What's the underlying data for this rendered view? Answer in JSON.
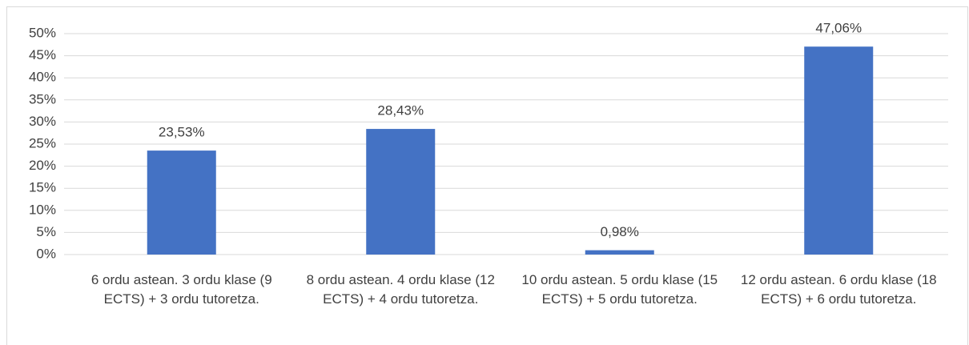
{
  "chart_data": {
    "type": "bar",
    "categories": [
      "6 ordu astean. 3 ordu klase (9 ECTS) + 3 ordu tutoretza.",
      "8 ordu astean. 4 ordu klase (12 ECTS) + 4 ordu tutoretza.",
      "10 ordu astean. 5 ordu klase (15 ECTS) + 5 ordu tutoretza.",
      "12 ordu astean. 6 ordu klase (18 ECTS) + 6 ordu tutoretza."
    ],
    "values": [
      23.53,
      28.43,
      0.98,
      47.06
    ],
    "value_labels": [
      "23,53%",
      "28,43%",
      "0,98%",
      "47,06%"
    ],
    "color": "#4472c4",
    "ylim": [
      0,
      50
    ],
    "yticks": [
      {
        "value": 0,
        "label": "0%"
      },
      {
        "value": 5,
        "label": "5%"
      },
      {
        "value": 10,
        "label": "10%"
      },
      {
        "value": 15,
        "label": "15%"
      },
      {
        "value": 20,
        "label": "20%"
      },
      {
        "value": 25,
        "label": "25%"
      },
      {
        "value": 30,
        "label": "30%"
      },
      {
        "value": 35,
        "label": "35%"
      },
      {
        "value": 40,
        "label": "40%"
      },
      {
        "value": 45,
        "label": "45%"
      },
      {
        "value": 50,
        "label": "50%"
      }
    ],
    "grid": true
  }
}
